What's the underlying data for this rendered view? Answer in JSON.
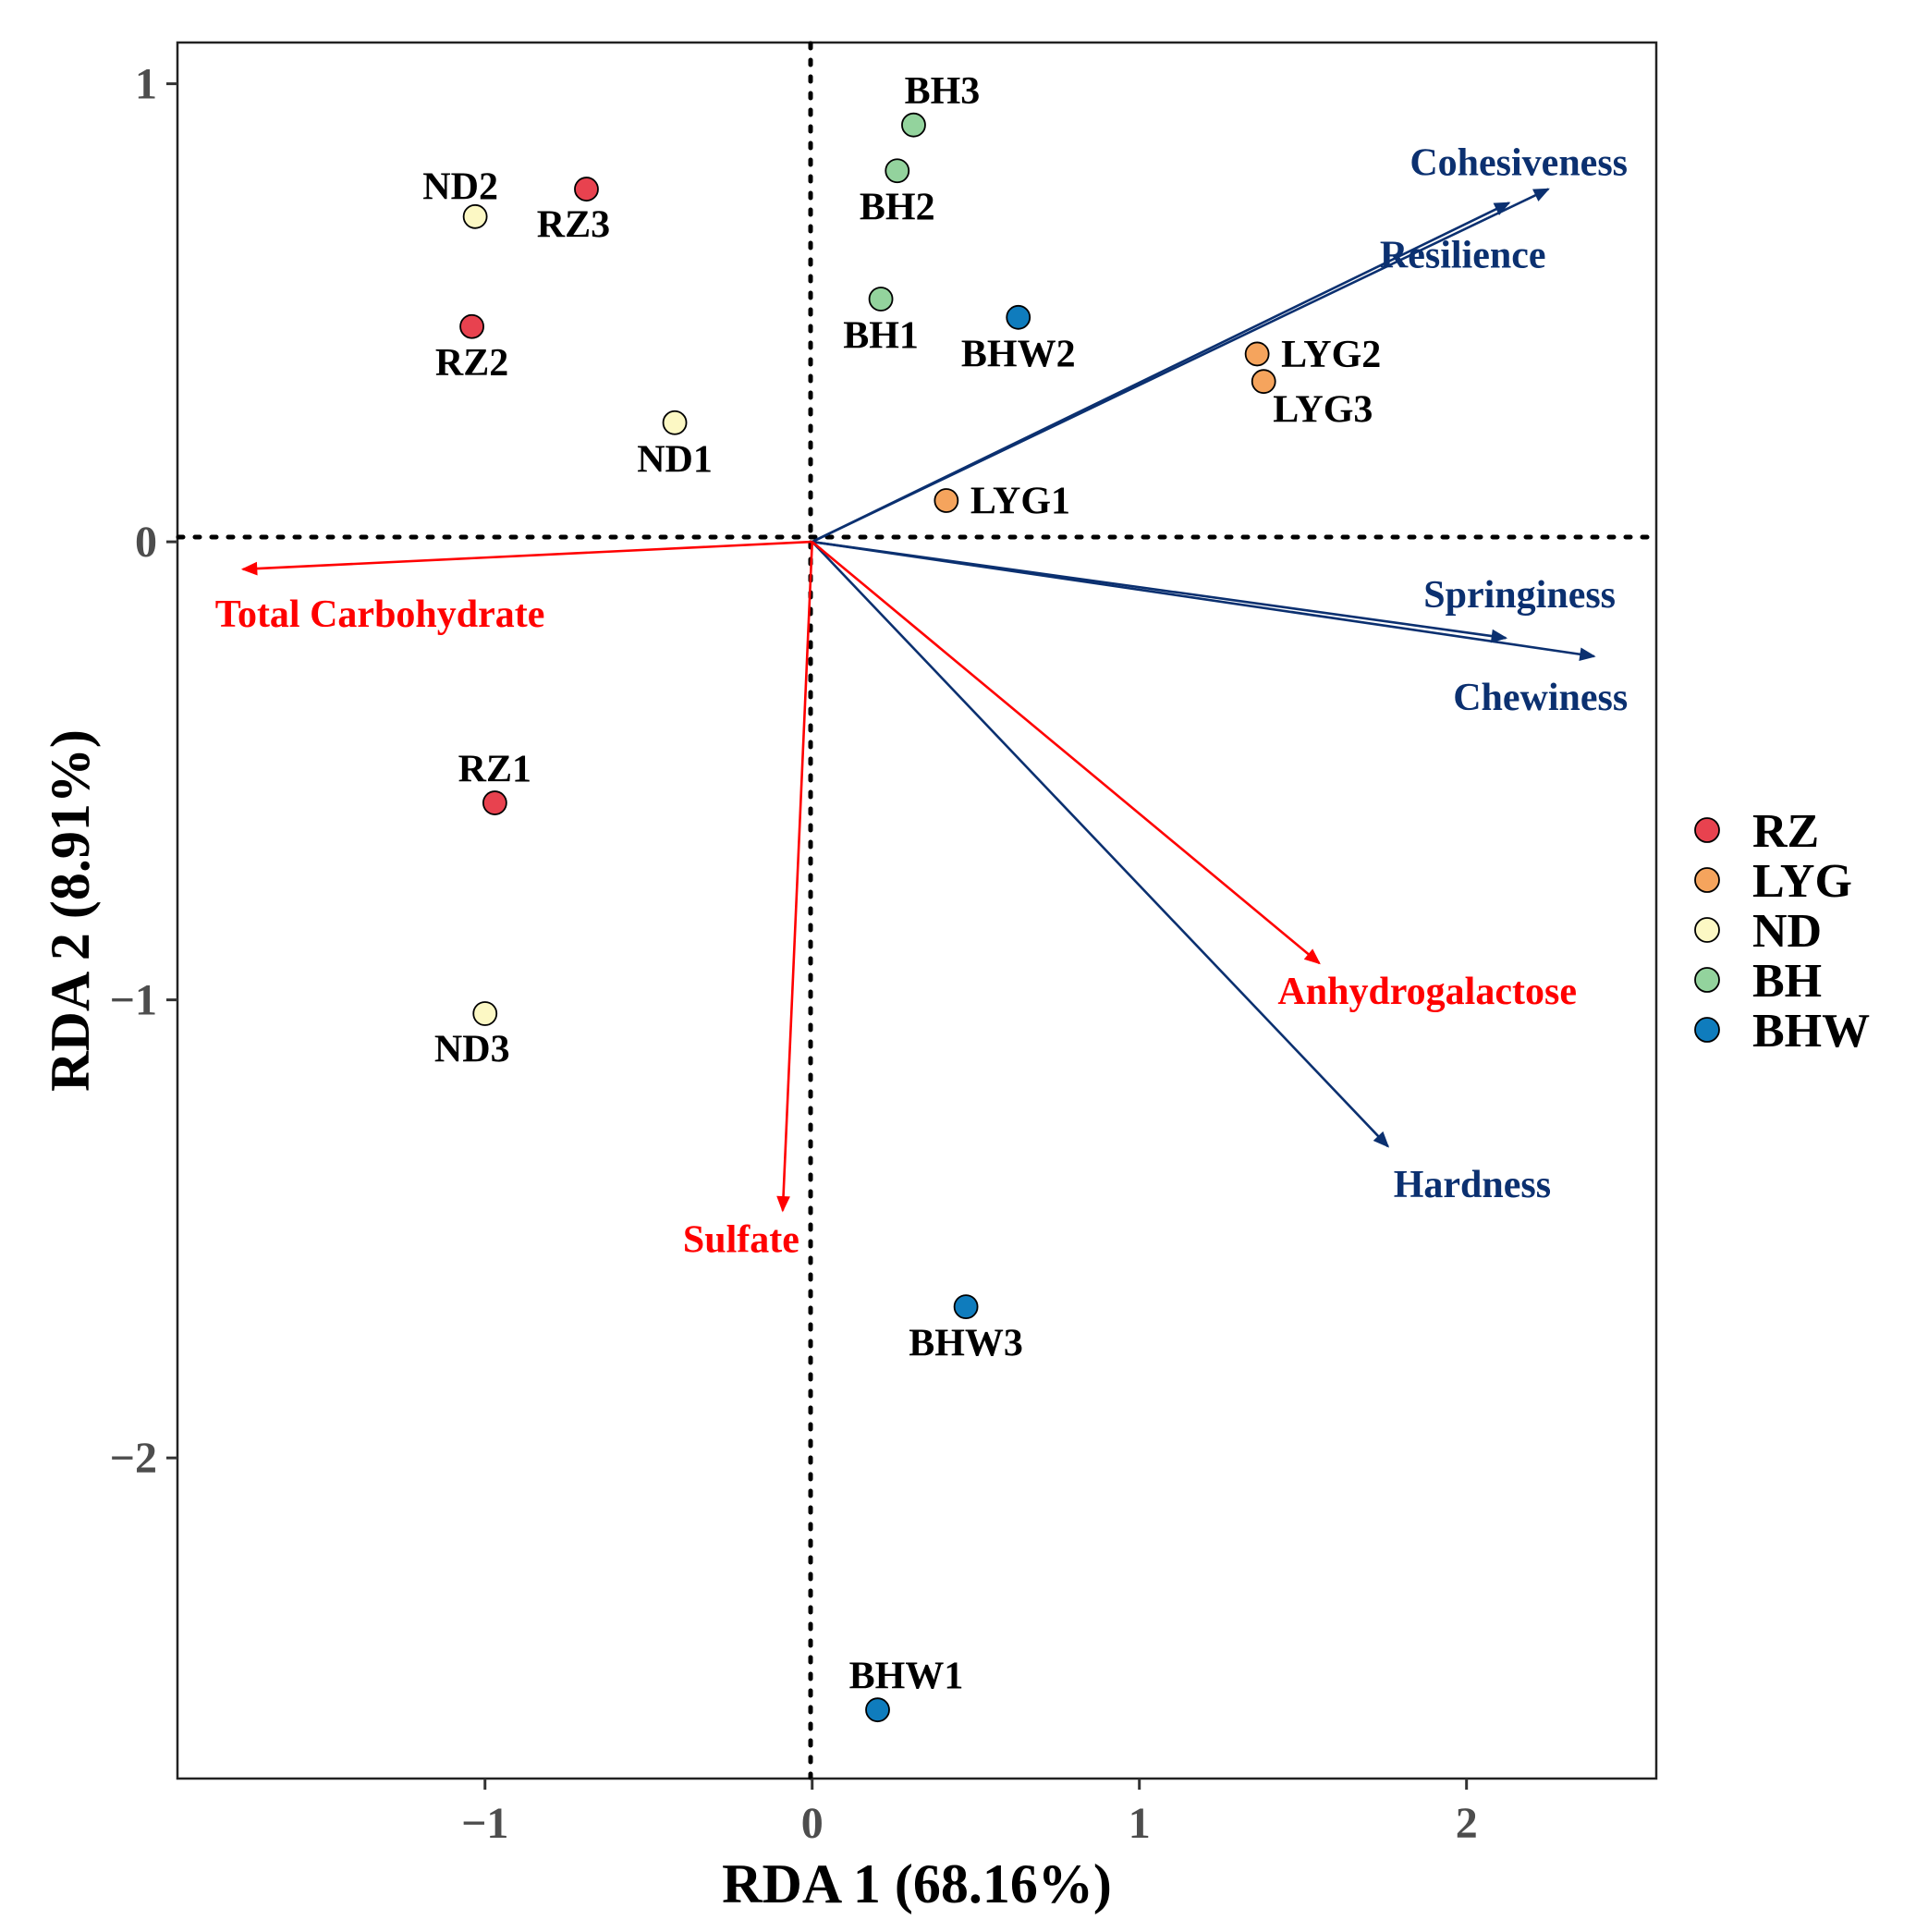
{
  "chart_data": {
    "type": "scatter",
    "subtype": "rda-biplot",
    "xlabel": "RDA 1 (68.16%)",
    "ylabel": "RDA 2 (8.91%)",
    "xlim": [
      -1.94,
      2.58
    ],
    "ylim": [
      -2.7,
      1.09
    ],
    "x_ticks": [
      -1,
      0,
      1,
      2
    ],
    "x_tick_labels": [
      "−1",
      "0",
      "1",
      "2"
    ],
    "y_ticks": [
      1,
      0,
      -1,
      -2
    ],
    "y_tick_labels": [
      "1",
      "0",
      "−1",
      "−2"
    ],
    "grid": false,
    "legend_position": "right",
    "groups": [
      {
        "name": "RZ",
        "color": "#e8424f"
      },
      {
        "name": "LYG",
        "color": "#f5a45d"
      },
      {
        "name": "ND",
        "color": "#fcf8c4"
      },
      {
        "name": "BH",
        "color": "#93d39d"
      },
      {
        "name": "BHW",
        "color": "#0f7cbd"
      }
    ],
    "points": [
      {
        "label": "RZ1",
        "group": "RZ",
        "x": -0.97,
        "y": -0.57,
        "label_pos": "above"
      },
      {
        "label": "RZ2",
        "group": "RZ",
        "x": -1.04,
        "y": 0.47,
        "label_pos": "below"
      },
      {
        "label": "RZ3",
        "group": "RZ",
        "x": -0.69,
        "y": 0.77,
        "label_pos": "below-left"
      },
      {
        "label": "LYG1",
        "group": "LYG",
        "x": 0.41,
        "y": 0.09,
        "label_pos": "right"
      },
      {
        "label": "LYG2",
        "group": "LYG",
        "x": 1.36,
        "y": 0.41,
        "label_pos": "right"
      },
      {
        "label": "LYG3",
        "group": "LYG",
        "x": 1.38,
        "y": 0.35,
        "label_pos": "below-right"
      },
      {
        "label": "ND1",
        "group": "ND",
        "x": -0.42,
        "y": 0.26,
        "label_pos": "below"
      },
      {
        "label": "ND2",
        "group": "ND",
        "x": -1.03,
        "y": 0.71,
        "label_pos": "above-left"
      },
      {
        "label": "ND3",
        "group": "ND",
        "x": -1.0,
        "y": -1.03,
        "label_pos": "below-left"
      },
      {
        "label": "BH1",
        "group": "BH",
        "x": 0.21,
        "y": 0.53,
        "label_pos": "below"
      },
      {
        "label": "BH2",
        "group": "BH",
        "x": 0.26,
        "y": 0.81,
        "label_pos": "below"
      },
      {
        "label": "BH3",
        "group": "BH",
        "x": 0.31,
        "y": 0.91,
        "label_pos": "above-right"
      },
      {
        "label": "BHW1",
        "group": "BHW",
        "x": 0.2,
        "y": -2.55,
        "label_pos": "above-right"
      },
      {
        "label": "BHW2",
        "group": "BHW",
        "x": 0.63,
        "y": 0.49,
        "label_pos": "below"
      },
      {
        "label": "BHW3",
        "group": "BHW",
        "x": 0.47,
        "y": -1.67,
        "label_pos": "below"
      }
    ],
    "explanatory_arrows": [
      {
        "label": "Total Carbohydrate",
        "color": "#ff0000",
        "x": -1.74,
        "y": -0.06
      },
      {
        "label": "Sulfate",
        "color": "#ff0000",
        "x": -0.09,
        "y": -1.46
      },
      {
        "label": "Anhydrogalactose",
        "color": "#ff0000",
        "x": 1.55,
        "y": -0.92
      }
    ],
    "response_arrows": [
      {
        "label": "Cohesiveness",
        "color": "#0b3070",
        "x": 2.25,
        "y": 0.77
      },
      {
        "label": "Resilience",
        "color": "#0b3070",
        "x": 2.13,
        "y": 0.74
      },
      {
        "label": "Springiness",
        "color": "#0b3070",
        "x": 2.12,
        "y": -0.21
      },
      {
        "label": "Chewiness",
        "color": "#0b3070",
        "x": 2.39,
        "y": -0.25
      },
      {
        "label": "Hardness",
        "color": "#0b3070",
        "x": 1.76,
        "y": -1.32
      }
    ]
  }
}
